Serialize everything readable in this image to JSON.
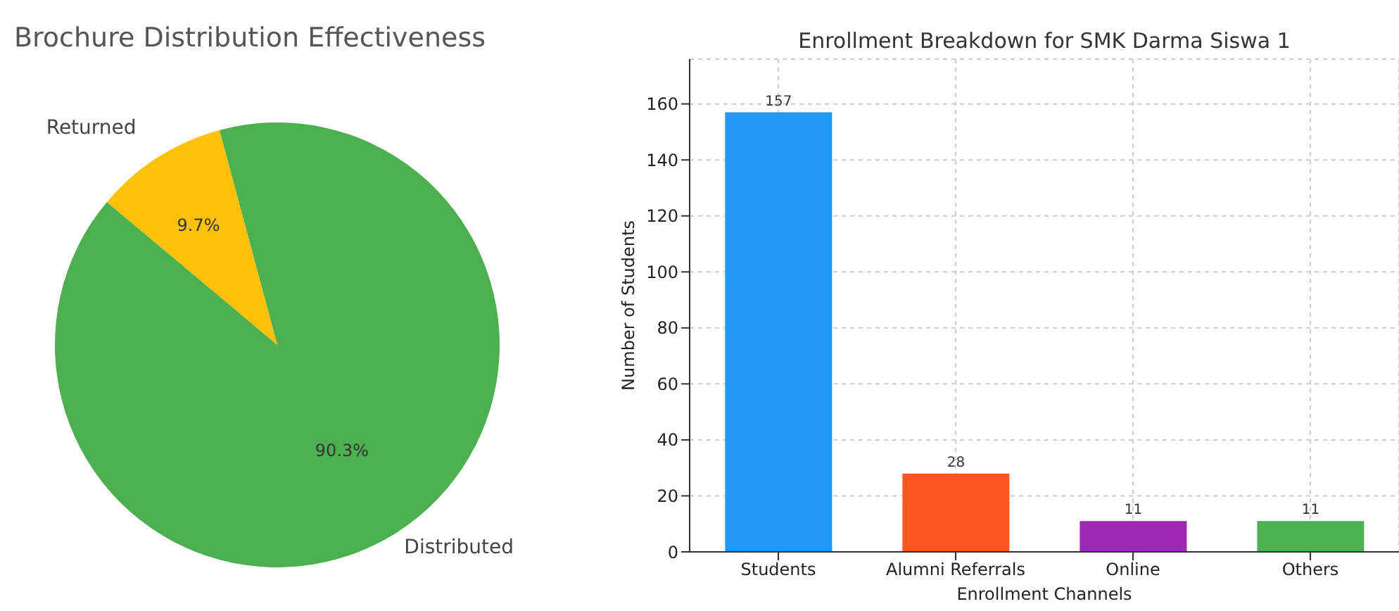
{
  "chart_data": [
    {
      "type": "pie",
      "title": "Brochure Distribution Effectiveness",
      "categories": [
        "Distributed",
        "Returned"
      ],
      "values": [
        90.3,
        9.7
      ],
      "colors": [
        "#4caf50",
        "#ffc107"
      ],
      "value_labels": [
        "90.3%",
        "9.7%"
      ],
      "legend": false
    },
    {
      "type": "bar",
      "title": "Enrollment Breakdown for SMK Darma Siswa 1",
      "xlabel": "Enrollment Channels",
      "ylabel": "Number of Students",
      "categories": [
        "Students",
        "Alumni Referrals",
        "Online",
        "Others"
      ],
      "values": [
        157,
        28,
        11,
        11
      ],
      "colors": [
        "#2196f3",
        "#ff5722",
        "#9c27b0",
        "#4caf50"
      ],
      "ylim": [
        0,
        176
      ],
      "yticks": [
        0,
        20,
        40,
        60,
        80,
        100,
        120,
        140,
        160
      ],
      "grid": true,
      "data_labels": true,
      "legend": false
    }
  ]
}
